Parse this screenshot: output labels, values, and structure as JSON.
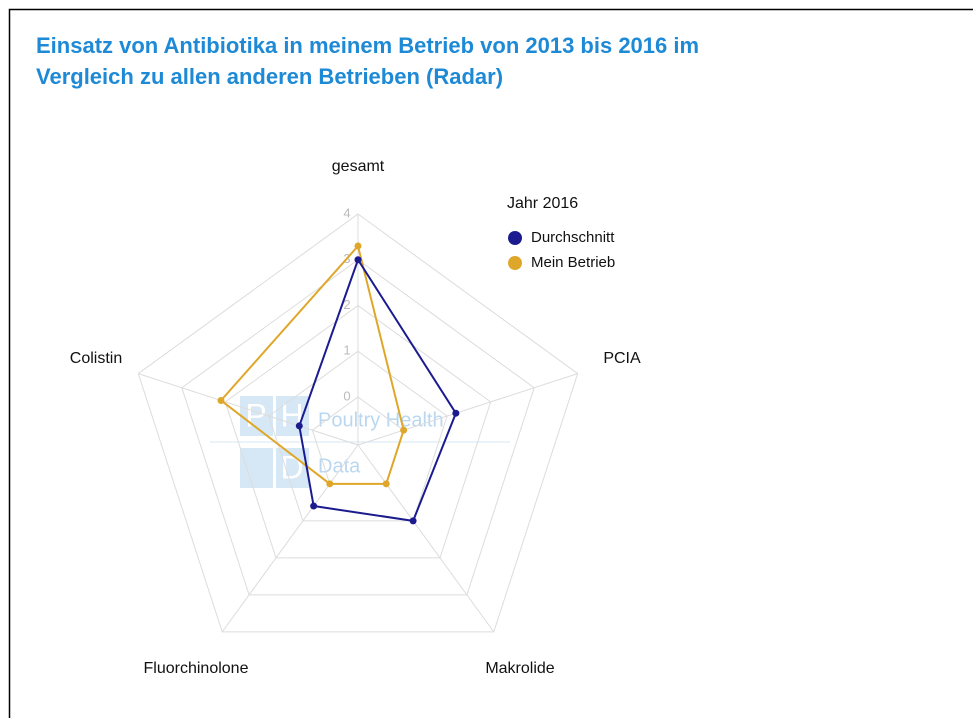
{
  "chart_data": {
    "type": "radar",
    "title": [
      "Einsatz von Antibiotika in meinem Betrieb von 2013 bis 2016 im",
      "Vergleich zu allen anderen Betrieben (Radar)"
    ],
    "categories": [
      "gesamt",
      "PCIA",
      "Makrolide",
      "Fluorchinolone",
      "Colistin"
    ],
    "legend_title": "Jahr 2016",
    "series": [
      {
        "name": "Durchschnitt",
        "color": "#1b1b8f",
        "values": [
          3.0,
          1.2,
          1.0,
          0.6,
          0.3
        ]
      },
      {
        "name": "Mein Betrieb",
        "color": "#dfa72a",
        "values": [
          3.3,
          0,
          0,
          0,
          2.1
        ]
      }
    ],
    "rlim": [
      0,
      4
    ],
    "rticks": [
      0,
      1,
      2,
      3,
      4
    ],
    "grid": true,
    "watermark": {
      "letters": [
        "P",
        "H",
        "D"
      ],
      "lines": [
        "Poultry Health",
        "Data"
      ]
    }
  }
}
